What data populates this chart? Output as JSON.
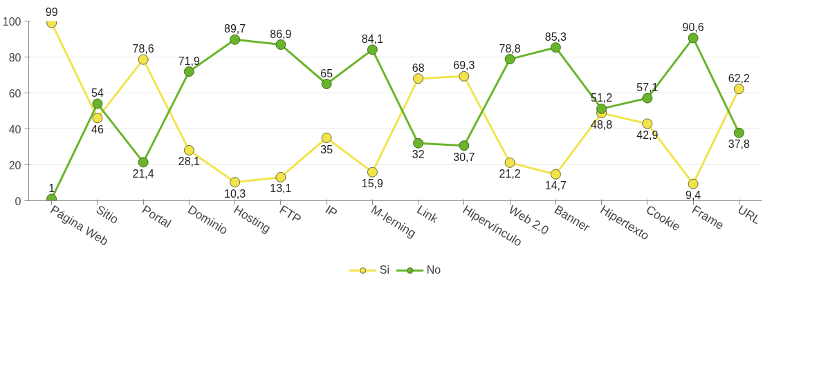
{
  "chart_data": {
    "type": "line",
    "categories": [
      "Página Web",
      "Sitio",
      "Portal",
      "Dominio",
      "Hosting",
      "FTP",
      "IP",
      "M-lerning",
      "Link",
      "Hipervínculo",
      "Web 2.0",
      "Banner",
      "Hipertexto",
      "Cookie",
      "Frame",
      "URL"
    ],
    "series": [
      {
        "name": "Si",
        "color": "#f2e34c",
        "values": [
          99,
          46,
          78.6,
          28.1,
          10.3,
          13.1,
          35,
          15.9,
          68,
          69.3,
          21.2,
          14.7,
          48.8,
          42.9,
          9.4,
          62.2
        ],
        "value_labels": [
          "99",
          "46",
          "78,6",
          "28,1",
          "10,3",
          "13,1",
          "35",
          "15,9",
          "68",
          "69,3",
          "21,2",
          "14,7",
          "48,8",
          "42,9",
          "9,4",
          "62,2"
        ]
      },
      {
        "name": "No",
        "color": "#6ab42d",
        "values": [
          1,
          54,
          21.4,
          71.9,
          89.7,
          86.9,
          65,
          84.1,
          32,
          30.7,
          78.8,
          85.3,
          51.2,
          57.1,
          90.6,
          37.8
        ],
        "value_labels": [
          "1",
          "54",
          "21,4",
          "71,9",
          "89,7",
          "86,9",
          "65",
          "84,1",
          "32",
          "30,7",
          "78,8",
          "85,3",
          "51,2",
          "57,1",
          "90,6",
          "37,8"
        ]
      }
    ],
    "ylim": [
      0,
      100
    ],
    "yticks": [
      0,
      20,
      40,
      60,
      80,
      100
    ],
    "grid": "y",
    "legend": "bottom",
    "marker": "circle",
    "line_style": "solid"
  }
}
